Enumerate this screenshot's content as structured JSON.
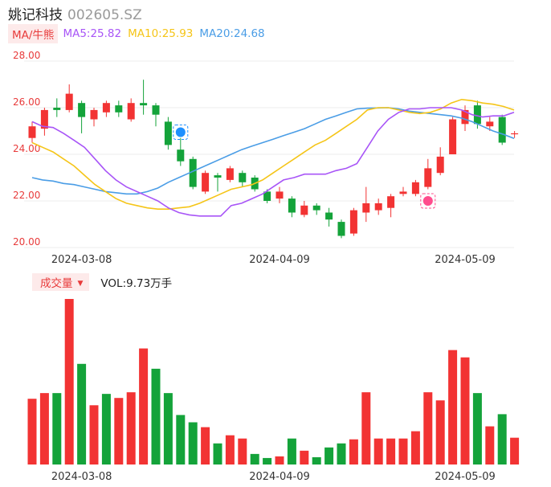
{
  "header": {
    "name": "姚记科技",
    "code": "002605.SZ"
  },
  "ma_bar": {
    "button_label": "MA/牛熊",
    "items": [
      {
        "label": "MA5:25.82",
        "color": "#a855f7"
      },
      {
        "label": "MA10:25.93",
        "color": "#f5c518"
      },
      {
        "label": "MA20:24.68",
        "color": "#4a9de6"
      }
    ]
  },
  "volume_bar": {
    "button_label": "成交量",
    "caret": "▼",
    "text": "VOL:9.73万手"
  },
  "colors": {
    "up": "#f23333",
    "down": "#14a33a",
    "grid": "#ececec",
    "axis_text": "#e83b3b",
    "ma5": "#a855f7",
    "ma10": "#f5c518",
    "ma20": "#4a9de6"
  },
  "icons": {
    "bear_badge": "bear-icon",
    "bull_badge": "bull-icon"
  },
  "chart_data": [
    {
      "type": "candlestick",
      "y_ticks": [
        "28.00",
        "26.00",
        "24.00",
        "22.00",
        "20.00"
      ],
      "ylim": [
        20,
        28
      ],
      "x_ticks": [
        "2024-03-08",
        "2024-04-09",
        "2024-05-09"
      ],
      "x_tick_index": [
        4,
        20,
        35
      ],
      "grid": true,
      "candles": [
        {
          "o": 24.7,
          "c": 25.2,
          "h": 25.4,
          "l": 24.5
        },
        {
          "o": 25.1,
          "c": 25.9,
          "h": 26.0,
          "l": 24.8
        },
        {
          "o": 26.0,
          "c": 25.9,
          "h": 26.4,
          "l": 25.6
        },
        {
          "o": 25.9,
          "c": 26.6,
          "h": 27.0,
          "l": 25.8
        },
        {
          "o": 26.2,
          "c": 25.6,
          "h": 26.3,
          "l": 24.9
        },
        {
          "o": 25.5,
          "c": 25.9,
          "h": 26.0,
          "l": 25.2
        },
        {
          "o": 25.8,
          "c": 26.2,
          "h": 26.3,
          "l": 25.6
        },
        {
          "o": 26.1,
          "c": 25.8,
          "h": 26.3,
          "l": 25.6
        },
        {
          "o": 25.5,
          "c": 26.2,
          "h": 26.4,
          "l": 25.4
        },
        {
          "o": 26.2,
          "c": 26.1,
          "h": 27.2,
          "l": 25.7
        },
        {
          "o": 26.1,
          "c": 25.7,
          "h": 26.2,
          "l": 25.2
        },
        {
          "o": 25.4,
          "c": 24.4,
          "h": 25.6,
          "l": 24.2
        },
        {
          "o": 24.2,
          "c": 23.7,
          "h": 24.7,
          "l": 23.5
        },
        {
          "o": 23.8,
          "c": 22.6,
          "h": 23.9,
          "l": 22.5
        },
        {
          "o": 22.4,
          "c": 23.2,
          "h": 23.3,
          "l": 22.3
        },
        {
          "o": 23.1,
          "c": 23.0,
          "h": 23.2,
          "l": 22.4
        },
        {
          "o": 22.9,
          "c": 23.4,
          "h": 23.5,
          "l": 22.8
        },
        {
          "o": 23.2,
          "c": 22.8,
          "h": 23.3,
          "l": 22.6
        },
        {
          "o": 23.0,
          "c": 22.5,
          "h": 23.1,
          "l": 22.4
        },
        {
          "o": 22.4,
          "c": 22.0,
          "h": 22.5,
          "l": 21.9
        },
        {
          "o": 22.1,
          "c": 22.4,
          "h": 22.6,
          "l": 21.9
        },
        {
          "o": 22.1,
          "c": 21.5,
          "h": 22.2,
          "l": 21.3
        },
        {
          "o": 21.4,
          "c": 21.8,
          "h": 22.0,
          "l": 21.3
        },
        {
          "o": 21.8,
          "c": 21.6,
          "h": 21.9,
          "l": 21.4
        },
        {
          "o": 21.5,
          "c": 21.2,
          "h": 21.7,
          "l": 20.9
        },
        {
          "o": 21.1,
          "c": 20.5,
          "h": 21.2,
          "l": 20.4
        },
        {
          "o": 20.6,
          "c": 21.6,
          "h": 21.7,
          "l": 20.5
        },
        {
          "o": 21.5,
          "c": 21.9,
          "h": 22.6,
          "l": 21.1
        },
        {
          "o": 21.6,
          "c": 21.9,
          "h": 22.1,
          "l": 21.4
        },
        {
          "o": 21.7,
          "c": 22.2,
          "h": 22.3,
          "l": 21.3
        },
        {
          "o": 22.3,
          "c": 22.4,
          "h": 22.6,
          "l": 22.2
        },
        {
          "o": 22.3,
          "c": 22.8,
          "h": 22.9,
          "l": 22.2
        },
        {
          "o": 22.6,
          "c": 23.4,
          "h": 23.8,
          "l": 22.5
        },
        {
          "o": 23.2,
          "c": 23.9,
          "h": 24.3,
          "l": 23.1
        },
        {
          "o": 24.0,
          "c": 25.5,
          "h": 25.6,
          "l": 24.0
        },
        {
          "o": 25.3,
          "c": 25.9,
          "h": 26.1,
          "l": 25.0
        },
        {
          "o": 26.1,
          "c": 25.3,
          "h": 26.3,
          "l": 25.1
        },
        {
          "o": 25.2,
          "c": 25.4,
          "h": 25.6,
          "l": 25.0
        },
        {
          "o": 25.6,
          "c": 24.5,
          "h": 25.7,
          "l": 24.4
        },
        {
          "o": 24.9,
          "c": 24.9,
          "h": 25.0,
          "l": 24.7
        }
      ],
      "ma5": [
        25.4,
        25.2,
        25.15,
        24.9,
        24.6,
        24.3,
        23.8,
        23.3,
        22.9,
        22.6,
        22.4,
        22.2,
        22.0,
        21.7,
        21.5,
        21.4,
        21.35,
        21.35,
        21.35,
        21.8,
        21.9,
        22.1,
        22.3,
        22.6,
        22.9,
        23.0,
        23.15,
        23.15,
        23.15,
        23.3,
        23.4,
        23.6,
        24.3,
        25.0,
        25.5,
        25.8,
        25.95,
        25.95,
        26.0,
        26.0,
        26.0,
        25.9,
        25.7,
        25.6,
        25.65,
        25.65,
        25.8
      ],
      "ma10": [
        24.5,
        24.3,
        24.1,
        23.8,
        23.5,
        23.1,
        22.7,
        22.4,
        22.1,
        21.9,
        21.8,
        21.7,
        21.65,
        21.65,
        21.7,
        21.75,
        21.9,
        22.1,
        22.3,
        22.5,
        22.6,
        22.7,
        22.9,
        23.2,
        23.5,
        23.8,
        24.1,
        24.4,
        24.6,
        24.9,
        25.2,
        25.5,
        25.9,
        26.0,
        26.0,
        25.9,
        25.8,
        25.75,
        25.8,
        25.95,
        26.2,
        26.35,
        26.3,
        26.2,
        26.15,
        26.05,
        25.9
      ],
      "ma20": [
        23.0,
        22.9,
        22.85,
        22.75,
        22.7,
        22.6,
        22.5,
        22.4,
        22.35,
        22.3,
        22.3,
        22.4,
        22.55,
        22.8,
        23.0,
        23.2,
        23.4,
        23.6,
        23.8,
        24.0,
        24.2,
        24.35,
        24.5,
        24.65,
        24.8,
        24.95,
        25.1,
        25.3,
        25.5,
        25.65,
        25.8,
        25.95,
        25.98,
        25.99,
        26.0,
        25.95,
        25.85,
        25.8,
        25.75,
        25.7,
        25.65,
        25.55,
        25.4,
        25.2,
        25.0,
        24.85,
        24.68
      ],
      "badges": [
        {
          "candle_index": 12,
          "value": 24.95,
          "icon": "bear"
        },
        {
          "candle_index": 32,
          "value": 22.0,
          "icon": "bull"
        }
      ]
    },
    {
      "type": "bar",
      "x_ticks": [
        "2024-03-08",
        "2024-04-09",
        "2024-05-09"
      ],
      "values": [
        8.1,
        8.8,
        8.8,
        20.4,
        12.4,
        7.3,
        8.7,
        8.2,
        8.9,
        14.3,
        11.8,
        8.8,
        6.1,
        5.2,
        4.6,
        2.6,
        3.6,
        3.2,
        1.3,
        0.8,
        1.0,
        3.2,
        1.7,
        0.9,
        2.1,
        2.6,
        3.1,
        8.9,
        3.2,
        3.2,
        3.2,
        4.1,
        8.9,
        7.9,
        14.1,
        13.2,
        8.8,
        4.7,
        6.2,
        3.3
      ],
      "directions": [
        "up",
        "up",
        "down",
        "up",
        "down",
        "up",
        "down",
        "up",
        "up",
        "up",
        "down",
        "down",
        "down",
        "down",
        "up",
        "down",
        "up",
        "up",
        "down",
        "down",
        "up",
        "down",
        "up",
        "down",
        "down",
        "down",
        "up",
        "up",
        "up",
        "up",
        "up",
        "up",
        "up",
        "up",
        "up",
        "up",
        "down",
        "up",
        "down",
        "up"
      ]
    }
  ]
}
